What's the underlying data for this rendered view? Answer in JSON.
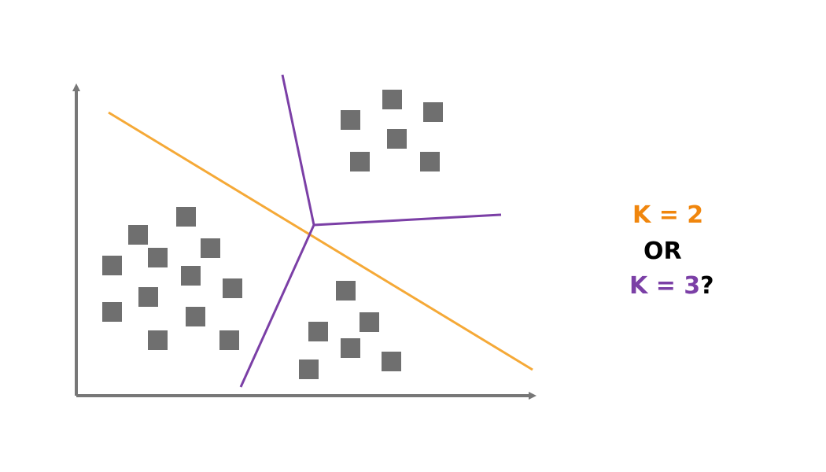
{
  "colors": {
    "axis": "#777777",
    "points": "#6f6f6f",
    "k2_line": "#f5a937",
    "k3_line": "#7b3fa6",
    "k2_text": "#f0860d",
    "k3_text": "#7b3fa6",
    "neutral_text": "#000000"
  },
  "question": {
    "k2_label": "K = 2",
    "or_label": "OR",
    "k3_label": "K = 3",
    "question_mark": "?"
  }
}
